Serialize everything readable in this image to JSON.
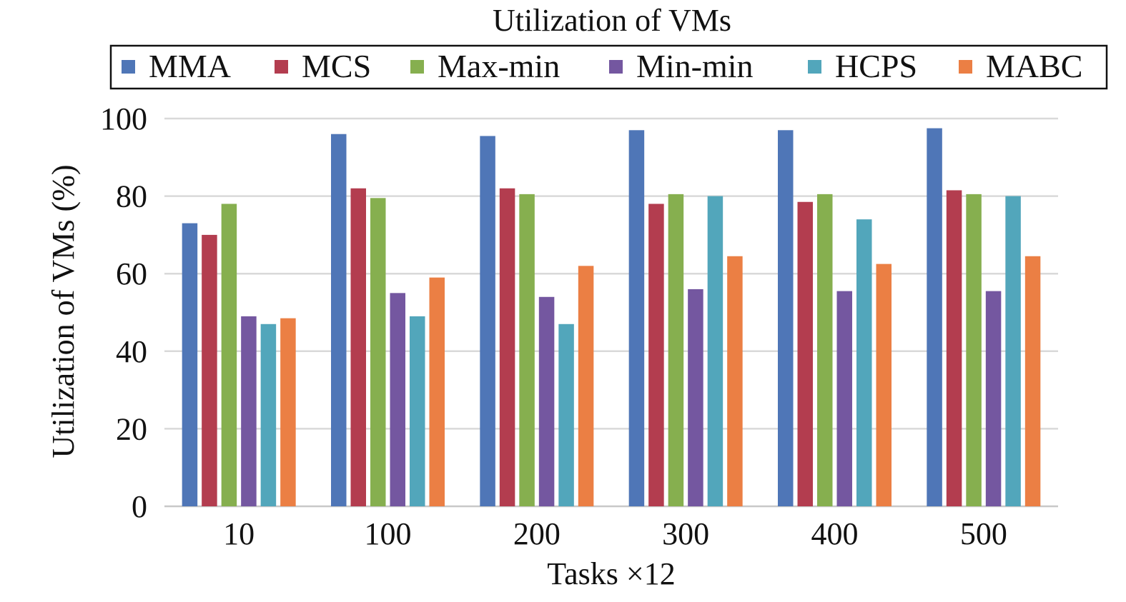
{
  "chart_data": {
    "type": "bar",
    "title": "Utilization of VMs",
    "xlabel": "Tasks ×12",
    "ylabel": "Utilization of  VMs (%)",
    "categories": [
      "10",
      "100",
      "200",
      "300",
      "400",
      "500"
    ],
    "ylim": [
      0,
      100
    ],
    "yticks": [
      0,
      20,
      40,
      60,
      80,
      100
    ],
    "grid": true,
    "legend_position": "top",
    "series": [
      {
        "name": "MMA",
        "color": "#4F76B7",
        "values": [
          73,
          96,
          95.5,
          97,
          97,
          97.5
        ]
      },
      {
        "name": "MCS",
        "color": "#B33D4F",
        "values": [
          70,
          82,
          82,
          78,
          78.5,
          81.5
        ]
      },
      {
        "name": "Max-min",
        "color": "#86AF4F",
        "values": [
          78,
          79.5,
          80.5,
          80.5,
          80.5,
          80.5
        ]
      },
      {
        "name": "Min-min",
        "color": "#7457A0",
        "values": [
          49,
          55,
          54,
          56,
          55.5,
          55.5
        ]
      },
      {
        "name": "HCPS",
        "color": "#52A6BB",
        "values": [
          47,
          49,
          47,
          80,
          74,
          80
        ]
      },
      {
        "name": "MABC",
        "color": "#EB7F44",
        "values": [
          48.5,
          59,
          62,
          64.5,
          62.5,
          64.5
        ]
      }
    ]
  }
}
